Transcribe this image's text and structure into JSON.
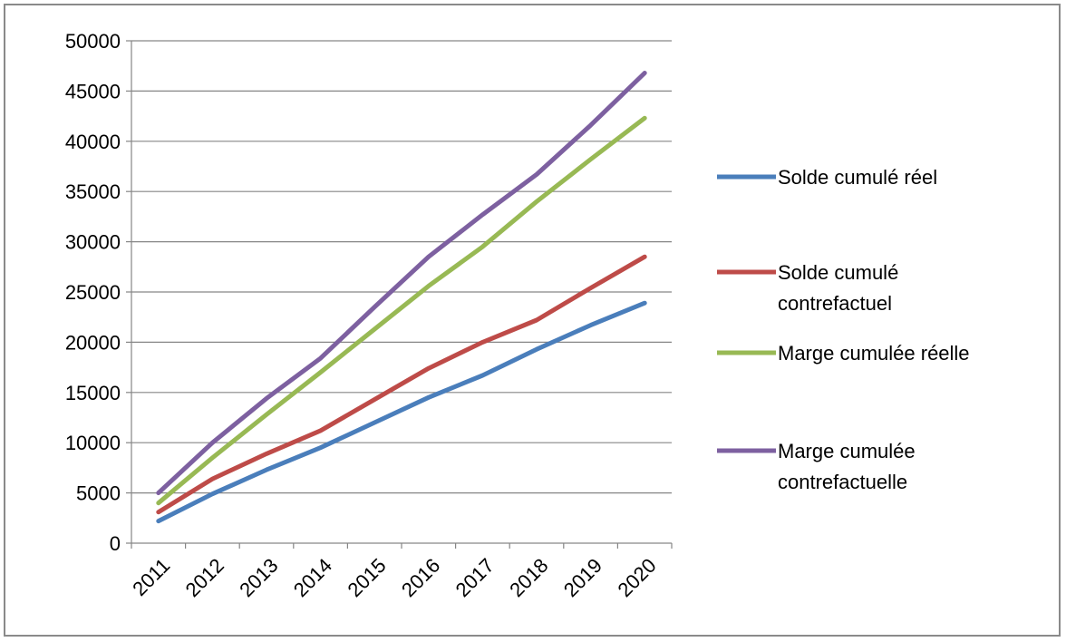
{
  "chart_data": {
    "type": "line",
    "categories": [
      "2011",
      "2012",
      "2013",
      "2014",
      "2015",
      "2016",
      "2017",
      "2018",
      "2019",
      "2020"
    ],
    "ylim": [
      0,
      50000
    ],
    "yticks": [
      "0",
      "5000",
      "10000",
      "15000",
      "20000",
      "25000",
      "30000",
      "35000",
      "40000",
      "45000",
      "50000"
    ],
    "grid": true,
    "legend_position": "right",
    "series": [
      {
        "name": "Solde cumulé réel",
        "name_lines": [
          "Solde cumulé réel"
        ],
        "color": "#4a7ebb",
        "values": [
          2200,
          4900,
          7300,
          9500,
          12000,
          14500,
          16700,
          19300,
          21700,
          23900
        ]
      },
      {
        "name": "Solde cumulé contrefactuel",
        "name_lines": [
          "Solde cumulé",
          "contrefactuel"
        ],
        "color": "#be4b48",
        "values": [
          3100,
          6400,
          8900,
          11200,
          14300,
          17400,
          20000,
          22200,
          25400,
          28500
        ]
      },
      {
        "name": "Marge cumulée réelle",
        "name_lines": [
          "Marge cumulée réelle"
        ],
        "color": "#98b954",
        "values": [
          4000,
          8500,
          12800,
          17000,
          21300,
          25600,
          29500,
          34000,
          38200,
          42300
        ]
      },
      {
        "name": "Marge cumulée contrefactuelle",
        "name_lines": [
          "Marge cumulée",
          "contrefactuelle"
        ],
        "color": "#7d60a0",
        "values": [
          5000,
          10000,
          14400,
          18400,
          23500,
          28500,
          32700,
          36700,
          41600,
          46800
        ]
      }
    ]
  }
}
